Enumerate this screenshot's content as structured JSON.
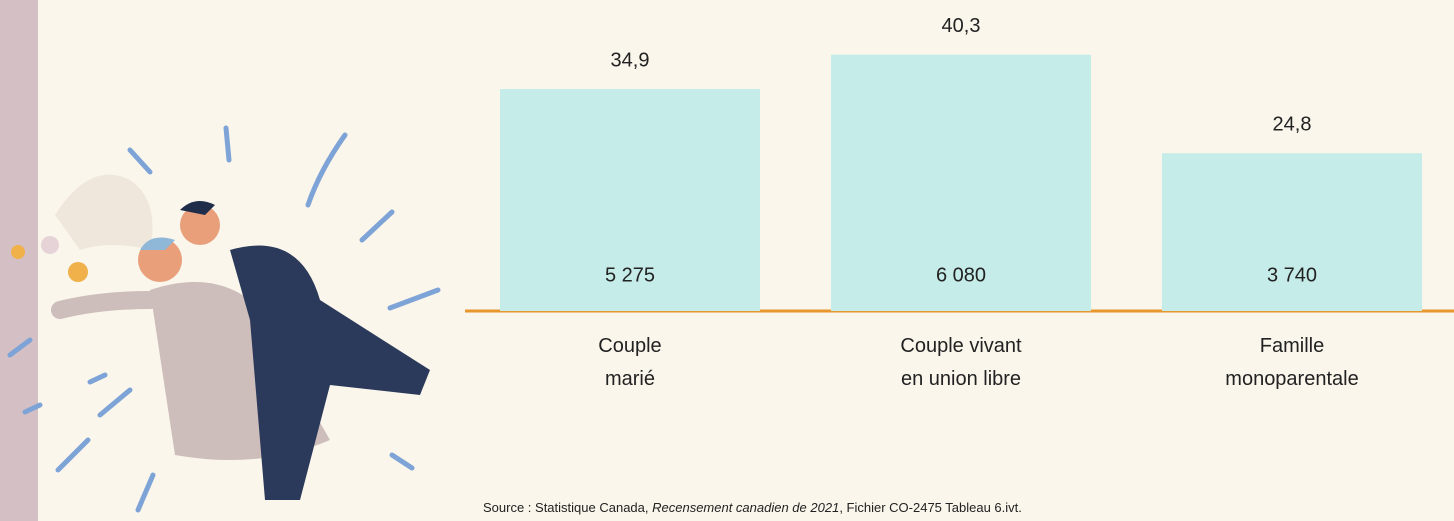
{
  "chart_data": {
    "type": "bar",
    "categories": [
      "Couple\nmarié",
      "Couple vivant\nen union libre",
      "Famille\nmonoparentale"
    ],
    "values": [
      34.9,
      40.3,
      24.8
    ],
    "value_labels": [
      "34,9",
      "40,3",
      "24,8"
    ],
    "color": "#c5ece8",
    "counts": {
      "values": [
        5275,
        6080,
        3740
      ],
      "value_labels": [
        "5 275",
        "6 080",
        "3 740"
      ]
    }
  },
  "source": {
    "prefix": "Source : Statistique Canada, ",
    "italic": "Recensement canadien de 2021",
    "suffix": ", Fichier CO-2475 Tableau 6.ivt."
  }
}
